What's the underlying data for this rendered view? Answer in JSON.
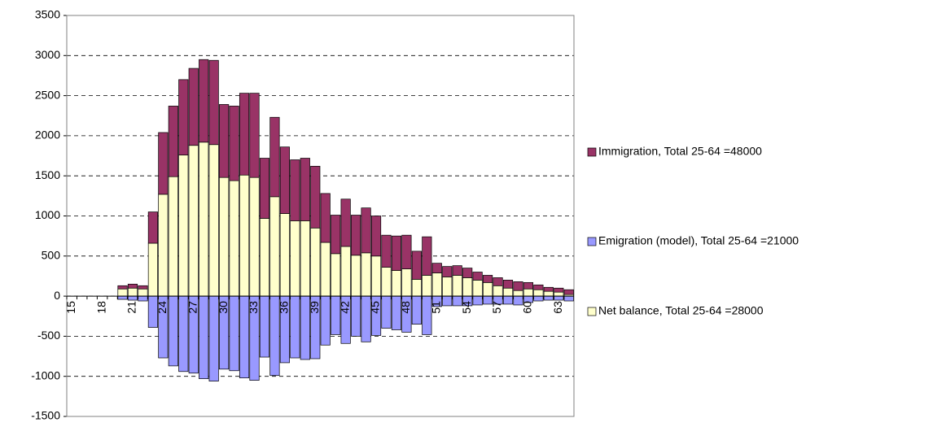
{
  "chart_data": {
    "type": "stacked_bar",
    "categories": [
      "15",
      null,
      null,
      "18",
      null,
      null,
      "21",
      null,
      null,
      "24",
      null,
      null,
      "27",
      null,
      null,
      "30",
      null,
      null,
      "33",
      null,
      null,
      "36",
      null,
      null,
      "39",
      null,
      null,
      "42",
      null,
      null,
      "45",
      null,
      null,
      "48",
      null,
      null,
      "51",
      null,
      null,
      "54",
      null,
      null,
      "57",
      null,
      null,
      "60",
      null,
      null,
      "63",
      null
    ],
    "series": [
      {
        "name": "Immigration, Total 25-64 =48000",
        "color": "#993366",
        "values": [
          0,
          0,
          0,
          0,
          0,
          40,
          50,
          40,
          390,
          770,
          880,
          940,
          960,
          1030,
          1050,
          910,
          930,
          1020,
          1050,
          750,
          990,
          830,
          760,
          780,
          770,
          610,
          480,
          590,
          500,
          560,
          500,
          400,
          430,
          420,
          350,
          480,
          120,
          130,
          120,
          120,
          100,
          90,
          100,
          100,
          110,
          80,
          60,
          50,
          50,
          60
        ]
      },
      {
        "name": "Emigration (model), Total 25-64 =21000",
        "color": "#9999ff",
        "values": [
          0,
          0,
          0,
          0,
          0,
          -40,
          -50,
          -60,
          -390,
          -770,
          -870,
          -940,
          -960,
          -1030,
          -1060,
          -910,
          -930,
          -1020,
          -1050,
          -760,
          -990,
          -830,
          -770,
          -790,
          -780,
          -610,
          -480,
          -590,
          -500,
          -570,
          -490,
          -400,
          -420,
          -450,
          -350,
          -480,
          -130,
          -120,
          -120,
          -120,
          -110,
          -100,
          -100,
          -100,
          -110,
          -80,
          -60,
          -50,
          -50,
          -60
        ]
      },
      {
        "name": "Net balance, Total 25-64 =28000",
        "color": "#ffffcc",
        "values": [
          0,
          0,
          0,
          0,
          0,
          90,
          100,
          90,
          660,
          1270,
          1490,
          1760,
          1880,
          1920,
          1890,
          1480,
          1440,
          1510,
          1480,
          970,
          1240,
          1030,
          940,
          940,
          850,
          670,
          530,
          620,
          510,
          540,
          500,
          360,
          320,
          340,
          210,
          260,
          290,
          240,
          260,
          230,
          200,
          170,
          130,
          100,
          70,
          90,
          80,
          60,
          50,
          20
        ]
      }
    ],
    "ylim": [
      -1500,
      3500
    ],
    "yticks": [
      -1500,
      -1000,
      -500,
      0,
      500,
      1000,
      1500,
      2000,
      2500,
      3000,
      3500
    ],
    "grid": true,
    "legend": "right"
  }
}
